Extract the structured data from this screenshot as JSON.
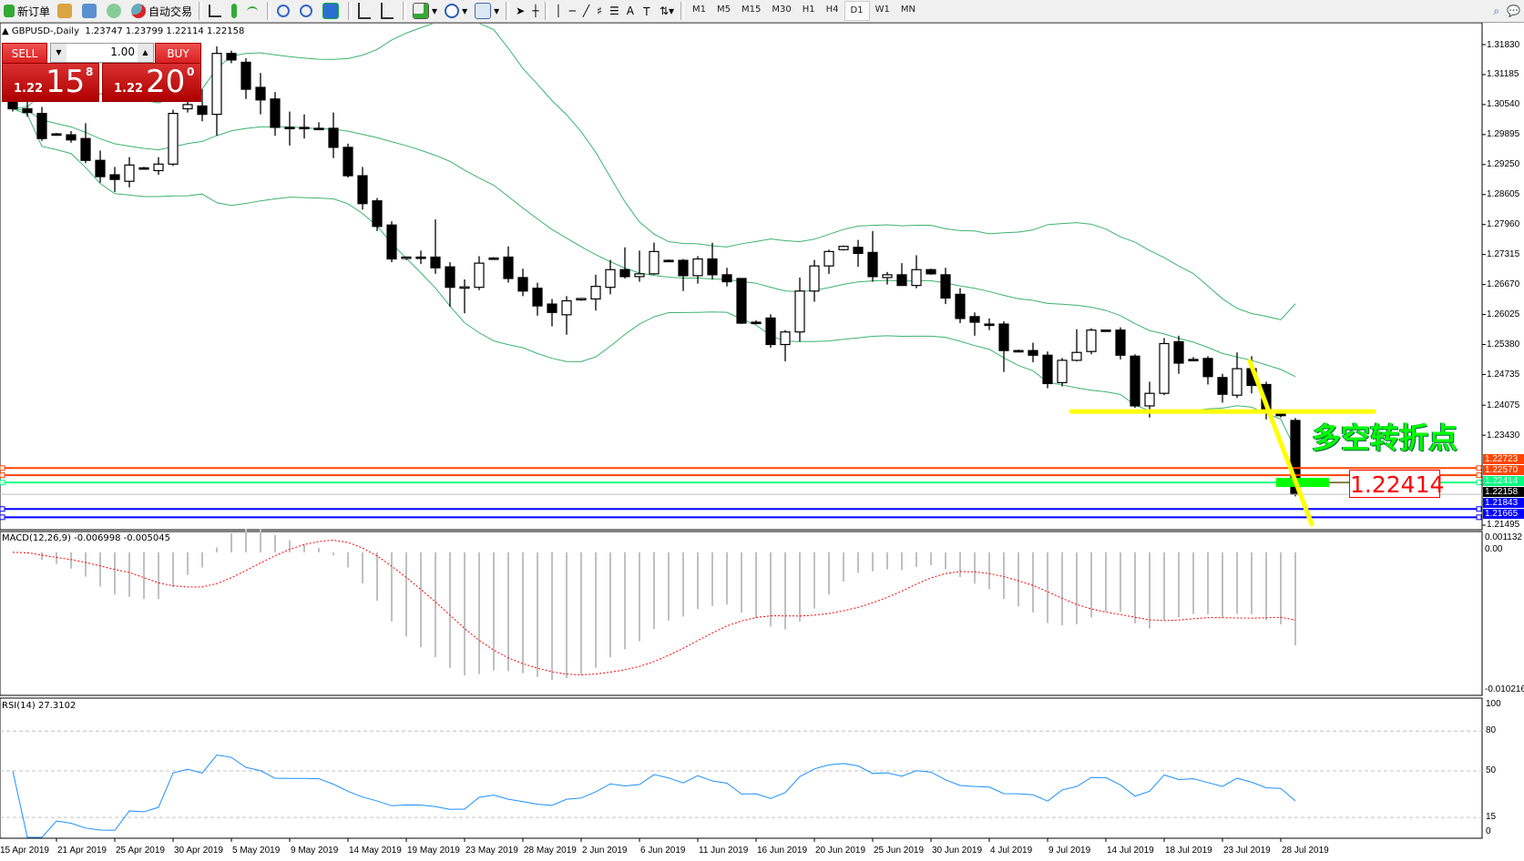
{
  "toolbar": {
    "new_order": "新订单",
    "auto_trading": "自动交易",
    "icons": [
      "new-order-icon",
      "metaeditor-icon",
      "navigator-icon",
      "signals-icon",
      "auto-trading-icon",
      "bar-chart-icon",
      "candlestick-icon",
      "line-chart-icon",
      "zoom-in-icon",
      "zoom-out-icon",
      "tile-windows-icon",
      "chart-shift-icon",
      "auto-scroll-icon",
      "indicators-icon",
      "periods-icon",
      "templates-icon",
      "cursor-icon",
      "crosshair-icon",
      "vertical-line-icon",
      "horizontal-line-icon",
      "trendline-icon",
      "fibonacci-icon",
      "fibo-fan-icon",
      "text-icon",
      "text-label-icon",
      "arrows-icon"
    ],
    "timeframes": [
      "M1",
      "M5",
      "M15",
      "M30",
      "H1",
      "H4",
      "D1",
      "W1",
      "MN"
    ],
    "active_timeframe": "D1"
  },
  "chart": {
    "title": "GBPUSD-,Daily",
    "ohlc_text": "1.23747 1.23799 1.22114 1.22158",
    "price_labels": [
      "1.31830",
      "1.31185",
      "1.30540",
      "1.29895",
      "1.29250",
      "1.28605",
      "1.27960",
      "1.27315",
      "1.26670",
      "1.26025",
      "1.25380",
      "1.24735",
      "1.24075",
      "1.23430",
      "1.21495"
    ],
    "date_labels": [
      "15 Apr 2019",
      "21 Apr 2019",
      "25 Apr 2019",
      "30 Apr 2019",
      "5 May 2019",
      "9 May 2019",
      "14 May 2019",
      "19 May 2019",
      "23 May 2019",
      "28 May 2019",
      "2 Jun 2019",
      "6 Jun 2019",
      "11 Jun 2019",
      "16 Jun 2019",
      "20 Jun 2019",
      "25 Jun 2019",
      "30 Jun 2019",
      "4 Jul 2019",
      "9 Jul 2019",
      "14 Jul 2019",
      "18 Jul 2019",
      "23 Jul 2019",
      "28 Jul 2019"
    ],
    "annotation_text": "多空转折点",
    "annotation_price_label": "1.22414",
    "yellow_support_level": 1.2394,
    "levels": [
      {
        "price": "1.22723",
        "color": "#ff4500"
      },
      {
        "price": "1.22570",
        "color": "#ff4500"
      },
      {
        "price": "1.22414",
        "color": "#00ff7f"
      },
      {
        "price": "1.22158",
        "color": "#000000",
        "bid": true
      },
      {
        "price": "1.21843",
        "color": "#0000ff"
      },
      {
        "price": "1.21665",
        "color": "#0000ff"
      }
    ],
    "colors": {
      "bands": "#3cb371",
      "annotation": "#00ff00",
      "trendline": "#ffff00",
      "rsi": "#1e90ff",
      "macd_hist": "#c0c0c0",
      "macd_signal": "#ff0000"
    }
  },
  "trade_panel": {
    "sell_label": "SELL",
    "buy_label": "BUY",
    "lot": "1.00",
    "sell_prefix": "1.22",
    "sell_big": "15",
    "sell_pip": "8",
    "buy_prefix": "1.22",
    "buy_big": "20",
    "buy_pip": "0"
  },
  "macd": {
    "label": "MACD(12,26,9) -0.006998 -0.005045",
    "axis_top": "0.001132",
    "axis_zero": "0.00",
    "axis_bottom": "-0.010216"
  },
  "rsi": {
    "label": "RSI(14) 27.3102",
    "axis": [
      "100",
      "80",
      "50",
      "15",
      "0"
    ],
    "levels": [
      80,
      50,
      15
    ]
  },
  "chart_data": {
    "type": "candlestick",
    "symbol": "GBPUSD-",
    "timeframe": "Daily",
    "ohlc_order": [
      "open",
      "high",
      "low",
      "close"
    ],
    "ylim": [
      1.21495,
      1.3183
    ],
    "candles": [
      [
        1.306,
        1.3064,
        1.3039,
        1.3045
      ],
      [
        1.3045,
        1.306,
        1.3028,
        1.3037
      ],
      [
        1.3035,
        1.3049,
        1.2976,
        1.2981
      ],
      [
        1.2991,
        1.2993,
        1.2987,
        1.299
      ],
      [
        1.2989,
        1.2997,
        1.2972,
        1.2978
      ],
      [
        1.2981,
        1.3014,
        1.2928,
        1.2934
      ],
      [
        1.2934,
        1.2955,
        1.2886,
        1.2899
      ],
      [
        1.2903,
        1.292,
        1.2866,
        1.2893
      ],
      [
        1.2889,
        1.2941,
        1.2876,
        1.2924
      ],
      [
        1.2918,
        1.292,
        1.2916,
        1.2917
      ],
      [
        1.2912,
        1.2941,
        1.2903,
        1.2926
      ],
      [
        1.2926,
        1.3043,
        1.2922,
        1.3035
      ],
      [
        1.3045,
        1.3062,
        1.3037,
        1.3054
      ],
      [
        1.3051,
        1.3087,
        1.3018,
        1.3033
      ],
      [
        1.3033,
        1.3179,
        1.2987,
        1.3164
      ],
      [
        1.3164,
        1.317,
        1.3143,
        1.315
      ],
      [
        1.3145,
        1.3154,
        1.3066,
        1.3087
      ],
      [
        1.3091,
        1.3122,
        1.3033,
        1.3064
      ],
      [
        1.3066,
        1.3081,
        1.2987,
        1.3005
      ],
      [
        1.3005,
        1.3039,
        1.2966,
        1.3004
      ],
      [
        1.3005,
        1.3033,
        1.2981,
        1.3004
      ],
      [
        1.3003,
        1.3016,
        1.3001,
        1.3002
      ],
      [
        1.3003,
        1.3037,
        1.2939,
        1.2962
      ],
      [
        1.2962,
        1.297,
        1.2897,
        1.2901
      ],
      [
        1.2901,
        1.292,
        1.2828,
        1.2841
      ],
      [
        1.2847,
        1.2853,
        1.2782,
        1.2792
      ],
      [
        1.2795,
        1.2803,
        1.2715,
        1.2722
      ],
      [
        1.2724,
        1.2727,
        1.272,
        1.2726
      ],
      [
        1.2726,
        1.274,
        1.2711,
        1.2725
      ],
      [
        1.2726,
        1.2807,
        1.269,
        1.2703
      ],
      [
        1.2705,
        1.2715,
        1.2619,
        1.2661
      ],
      [
        1.2661,
        1.2678,
        1.2605,
        1.2662
      ],
      [
        1.2661,
        1.2728,
        1.2655,
        1.2713
      ],
      [
        1.2724,
        1.2726,
        1.272,
        1.2723
      ],
      [
        1.2726,
        1.2749,
        1.2671,
        1.268
      ],
      [
        1.2682,
        1.2701,
        1.2642,
        1.2653
      ],
      [
        1.2659,
        1.2671,
        1.26,
        1.2621
      ],
      [
        1.2625,
        1.2636,
        1.2577,
        1.2607
      ],
      [
        1.2602,
        1.2642,
        1.2559,
        1.2632
      ],
      [
        1.2636,
        1.2638,
        1.2632,
        1.2637
      ],
      [
        1.2636,
        1.2688,
        1.2611,
        1.2663
      ],
      [
        1.2661,
        1.272,
        1.2646,
        1.2699
      ],
      [
        1.2699,
        1.2747,
        1.268,
        1.2684
      ],
      [
        1.2684,
        1.274,
        1.2673,
        1.269
      ],
      [
        1.269,
        1.2757,
        1.2688,
        1.2738
      ],
      [
        1.2719,
        1.2721,
        1.2716,
        1.2718
      ],
      [
        1.2719,
        1.2722,
        1.2653,
        1.2686
      ],
      [
        1.2686,
        1.2728,
        1.2669,
        1.2722
      ],
      [
        1.2722,
        1.2757,
        1.2678,
        1.2688
      ],
      [
        1.2688,
        1.2703,
        1.2663,
        1.2673
      ],
      [
        1.268,
        1.268,
        1.2582,
        1.2584
      ],
      [
        1.2586,
        1.259,
        1.2582,
        1.2585
      ],
      [
        1.2595,
        1.2603,
        1.2531,
        1.2538
      ],
      [
        1.2538,
        1.2569,
        1.2502,
        1.2565
      ],
      [
        1.2565,
        1.2682,
        1.2544,
        1.2653
      ],
      [
        1.2653,
        1.272,
        1.263,
        1.2707
      ],
      [
        1.2707,
        1.2742,
        1.269,
        1.2738
      ],
      [
        1.2742,
        1.2751,
        1.274,
        1.2749
      ],
      [
        1.2747,
        1.2763,
        1.2705,
        1.2734
      ],
      [
        1.2736,
        1.2782,
        1.2673,
        1.2684
      ],
      [
        1.2682,
        1.2694,
        1.2667,
        1.2688
      ],
      [
        1.2688,
        1.2713,
        1.2665,
        1.2665
      ],
      [
        1.2665,
        1.273,
        1.2659,
        1.2699
      ],
      [
        1.2699,
        1.2701,
        1.2688,
        1.269
      ],
      [
        1.2688,
        1.2703,
        1.2625,
        1.2638
      ],
      [
        1.2646,
        1.2659,
        1.2584,
        1.2594
      ],
      [
        1.2598,
        1.2607,
        1.2557,
        1.2586
      ],
      [
        1.2582,
        1.2594,
        1.2569,
        1.2581
      ],
      [
        1.2582,
        1.2588,
        1.2479,
        1.2525
      ],
      [
        1.2525,
        1.2527,
        1.2523,
        1.2524
      ],
      [
        1.2525,
        1.2542,
        1.25,
        1.2515
      ],
      [
        1.2515,
        1.2523,
        1.2444,
        1.2454
      ],
      [
        1.2456,
        1.2509,
        1.2448,
        1.2504
      ],
      [
        1.2504,
        1.2571,
        1.2502,
        1.2521
      ],
      [
        1.2523,
        1.2573,
        1.2517,
        1.2569
      ],
      [
        1.2569,
        1.257,
        1.2567,
        1.2568
      ],
      [
        1.2569,
        1.2575,
        1.2506,
        1.2515
      ],
      [
        1.2513,
        1.2517,
        1.2402,
        1.2406
      ],
      [
        1.2406,
        1.2458,
        1.2381,
        1.2433
      ],
      [
        1.2433,
        1.2552,
        1.2429,
        1.254
      ],
      [
        1.2544,
        1.2557,
        1.2475,
        1.2498
      ],
      [
        1.2506,
        1.2511,
        1.2502,
        1.2504
      ],
      [
        1.2508,
        1.2513,
        1.2452,
        1.2469
      ],
      [
        1.2467,
        1.2475,
        1.2413,
        1.2431
      ],
      [
        1.2429,
        1.2521,
        1.2423,
        1.2486
      ],
      [
        1.2486,
        1.2513,
        1.2433,
        1.245
      ],
      [
        1.2452,
        1.2458,
        1.2377,
        1.2392
      ],
      [
        1.239,
        1.2392,
        1.2381,
        1.2385
      ],
      [
        1.23747,
        1.23799,
        1.22114,
        1.22158
      ]
    ],
    "indicators": [
      "Bollinger Bands",
      "MACD(12,26,9)",
      "RSI(14)"
    ]
  }
}
